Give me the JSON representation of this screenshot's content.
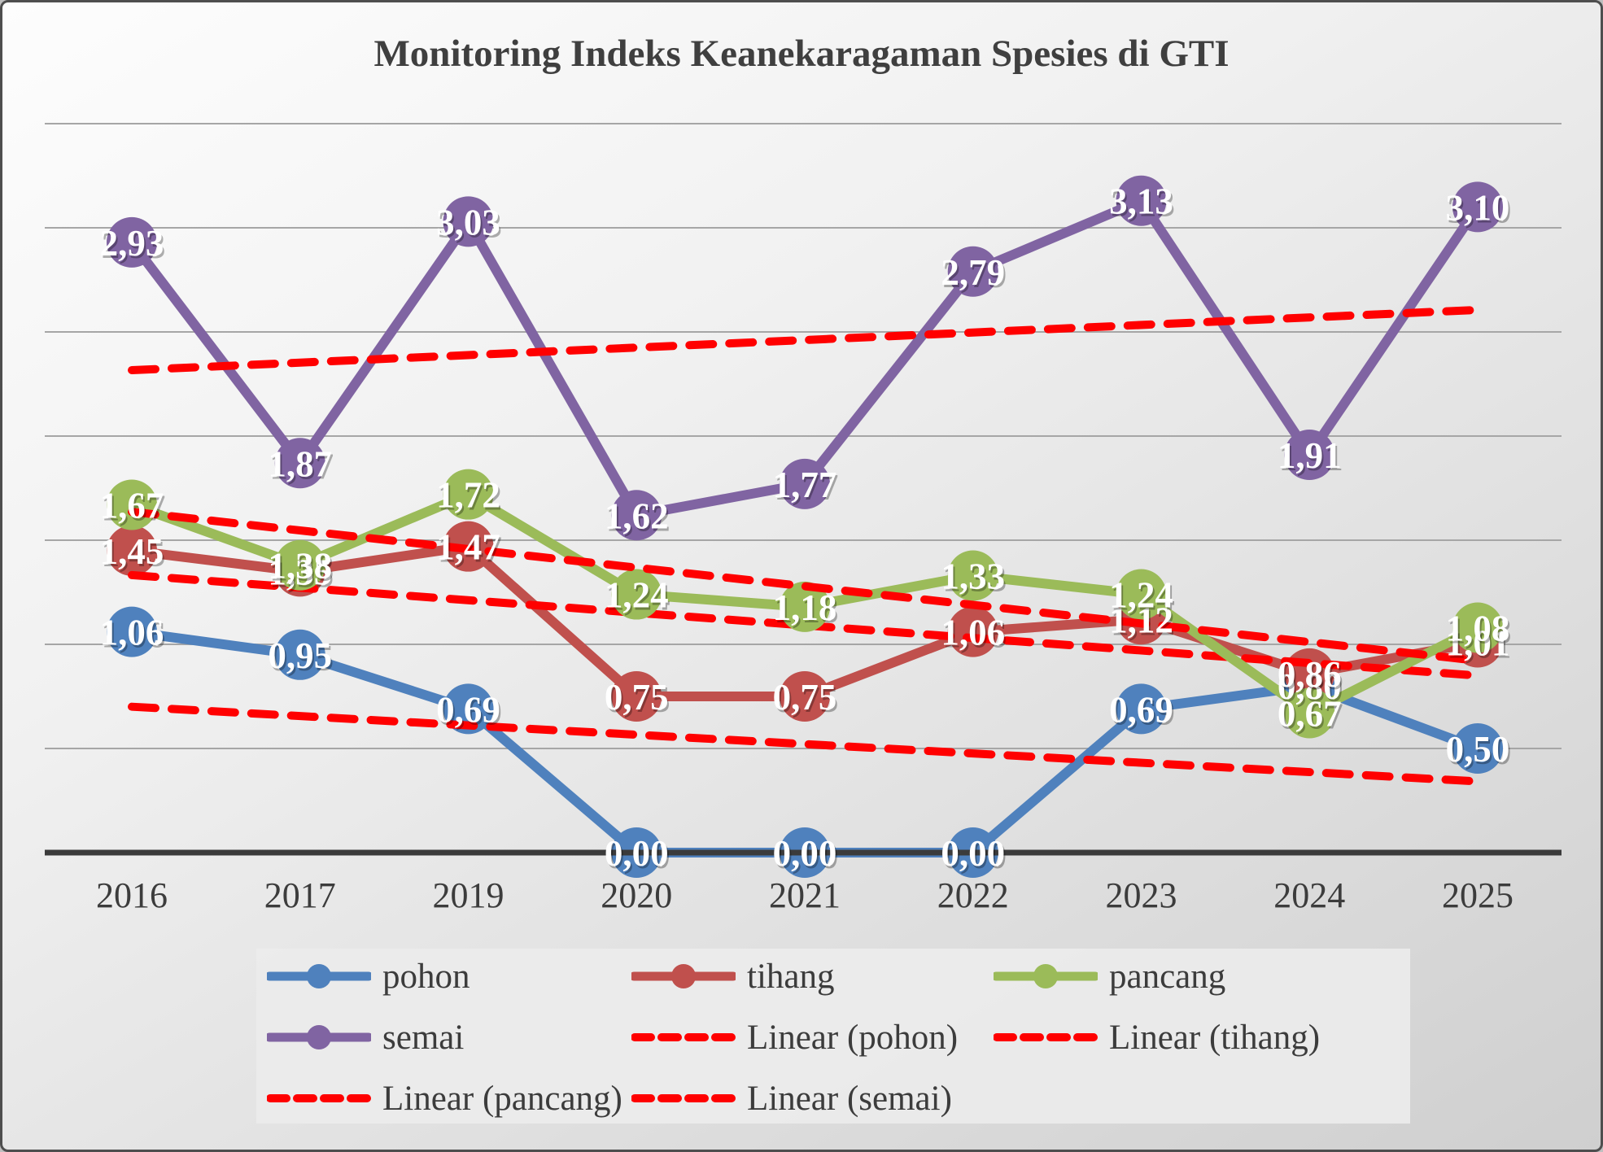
{
  "title": "Monitoring Indeks Keanekaragaman Spesies di GTI",
  "chart_data": {
    "type": "line",
    "title": "Monitoring Indeks Keanekaragaman Spesies di GTI",
    "categories": [
      "2016",
      "2017",
      "2019",
      "2020",
      "2021",
      "2022",
      "2023",
      "2024",
      "2025"
    ],
    "series": [
      {
        "name": "pohon",
        "color": "#4F81BD",
        "values": [
          1.06,
          0.95,
          0.69,
          0.0,
          0.0,
          0.0,
          0.69,
          0.8,
          0.5
        ],
        "labels": [
          "1,06",
          "0,95",
          "0,69",
          "0,00",
          "0,00",
          "0,00",
          "0,69",
          "0,80",
          "0,50"
        ]
      },
      {
        "name": "tihang",
        "color": "#C0504D",
        "values": [
          1.45,
          1.35,
          1.47,
          0.75,
          0.75,
          1.06,
          1.12,
          0.86,
          1.01
        ],
        "labels": [
          "1,45",
          "1,35",
          "1,47",
          "0,75",
          "0,75",
          "1,06",
          "1,12",
          "0,86",
          "1,01"
        ]
      },
      {
        "name": "pancang",
        "color": "#9BBB59",
        "values": [
          1.67,
          1.38,
          1.72,
          1.24,
          1.18,
          1.33,
          1.24,
          0.67,
          1.08
        ],
        "labels": [
          "1,67",
          "1,38",
          "1,72",
          "1,24",
          "1,18",
          "1,33",
          "1,24",
          "0,67",
          "1,08"
        ]
      },
      {
        "name": "semai",
        "color": "#8064A2",
        "values": [
          2.93,
          1.87,
          3.03,
          1.62,
          1.77,
          2.79,
          3.13,
          1.91,
          3.1
        ],
        "labels": [
          "2,93",
          "1,87",
          "3,03",
          "1,62",
          "1,77",
          "2,79",
          "3,13",
          "1,91",
          "3,10"
        ]
      }
    ],
    "trendlines": [
      {
        "label": "Linear (pohon)",
        "series": "pohon",
        "color": "#FF0000",
        "style": "dashed"
      },
      {
        "label": "Linear (tihang)",
        "series": "tihang",
        "color": "#FF0000",
        "style": "dashed"
      },
      {
        "label": "Linear (pancang)",
        "series": "pancang",
        "color": "#FF0000",
        "style": "dashed"
      },
      {
        "label": "Linear (semai)",
        "series": "semai",
        "color": "#FF0000",
        "style": "dashed"
      }
    ],
    "legend_entries": [
      "pohon",
      "tihang",
      "pancang",
      "semai",
      "Linear (pohon)",
      "Linear (tihang)",
      "Linear (pancang)",
      "Linear (semai)"
    ],
    "legend_position": "bottom",
    "ylim": [
      0,
      3.5
    ],
    "grid_step": 0.5,
    "grid": true,
    "y_axis_labels_visible": false,
    "decimal_separator": ","
  },
  "colors": {
    "trend": "#FF0000",
    "axis": "#3B3B3B",
    "grid": "#A6A6A6",
    "tick_text": "#3C3C3C",
    "data_label_text": "#FFFFFF",
    "title_text": "#3F3F3F"
  }
}
